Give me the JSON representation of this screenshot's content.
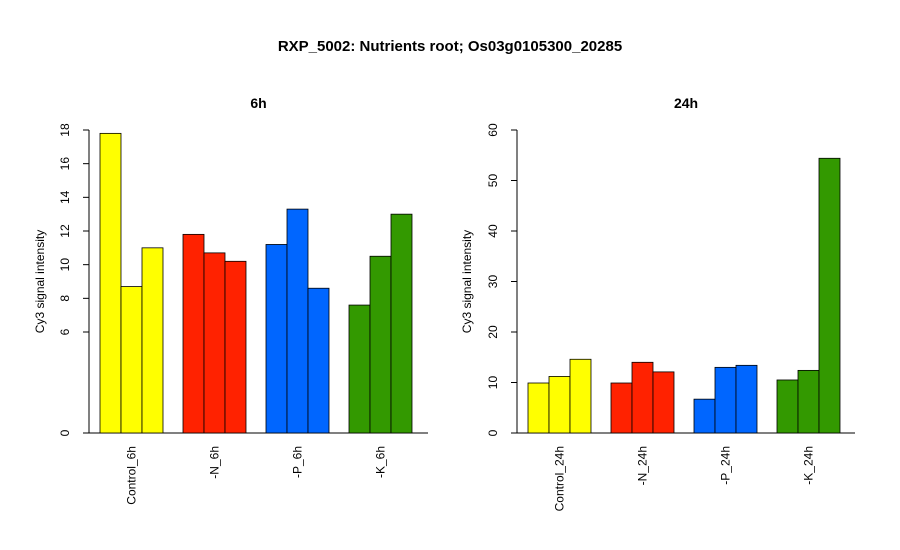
{
  "title": "RXP_5002: Nutrients root; Os03g0105300_20285",
  "colors": {
    "yellow": "#ffff00",
    "red": "#ff2200",
    "blue": "#0066ff",
    "green": "#339900",
    "stroke": "#000000"
  },
  "chart_data": [
    {
      "type": "bar",
      "title": "6h",
      "ylabel": "Cy3 signal intensity",
      "xlabel": "",
      "ylim": [
        0,
        18
      ],
      "yticks": [
        "0",
        "6",
        "8",
        "10",
        "12",
        "14",
        "16",
        "18"
      ],
      "groups": [
        {
          "label": "Control_6h",
          "color": "#ffff00",
          "values": [
            17.8,
            8.7,
            11.0
          ]
        },
        {
          "label": "-N_6h",
          "color": "#ff2200",
          "values": [
            11.8,
            10.7,
            10.2
          ]
        },
        {
          "label": "-P_6h",
          "color": "#0066ff",
          "values": [
            11.2,
            13.3,
            8.6
          ]
        },
        {
          "label": "-K_6h",
          "color": "#339900",
          "values": [
            7.6,
            10.5,
            13.0
          ]
        }
      ],
      "grid": false
    },
    {
      "type": "bar",
      "title": "24h",
      "ylabel": "Cy3 signal intensity",
      "xlabel": "",
      "ylim": [
        0,
        60
      ],
      "yticks": [
        "0",
        "10",
        "20",
        "30",
        "40",
        "50",
        "60"
      ],
      "groups": [
        {
          "label": "Control_24h",
          "color": "#ffff00",
          "values": [
            9.9,
            11.2,
            14.6
          ]
        },
        {
          "label": "-N_24h",
          "color": "#ff2200",
          "values": [
            9.9,
            14.0,
            12.1
          ]
        },
        {
          "label": "-P_24h",
          "color": "#0066ff",
          "values": [
            6.7,
            13.0,
            13.4
          ]
        },
        {
          "label": "-K_24h",
          "color": "#339900",
          "values": [
            10.5,
            12.4,
            54.4
          ]
        }
      ],
      "grid": false
    }
  ]
}
